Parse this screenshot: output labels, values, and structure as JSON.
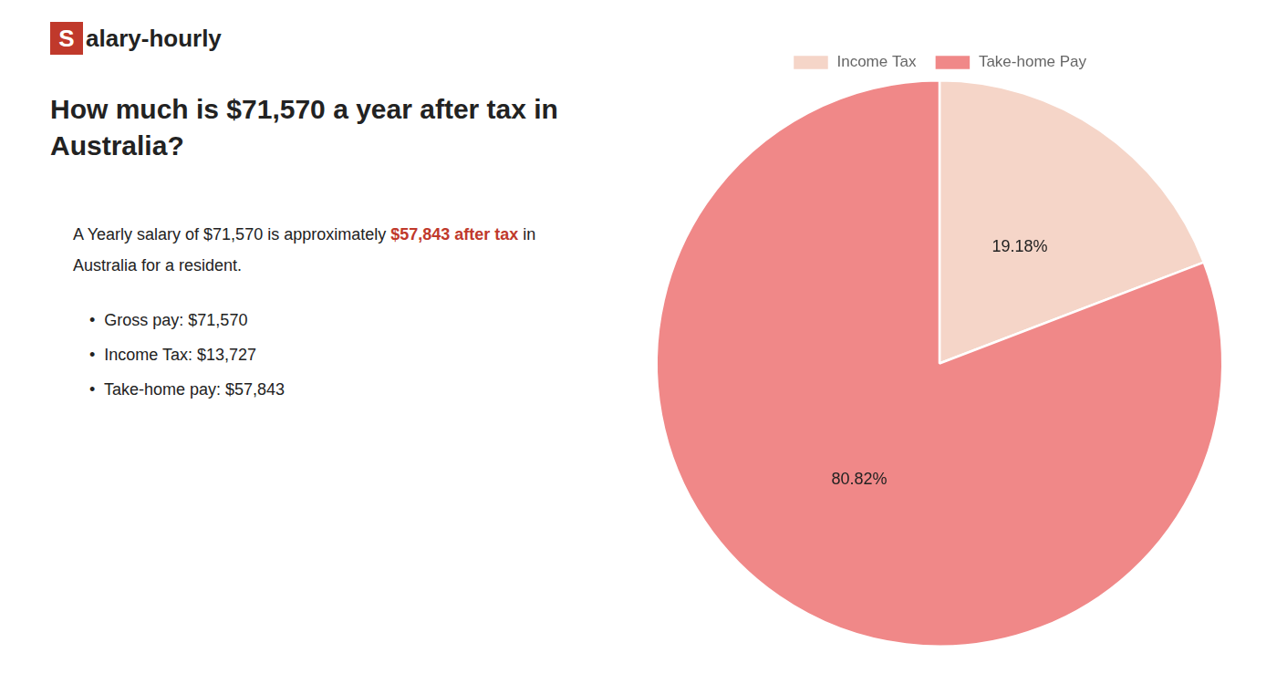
{
  "chart_data": {
    "type": "pie",
    "title": [
      "How much is $71,570 a year after tax in",
      "Australia?"
    ],
    "categories": [
      "Income Tax",
      "Take-home Pay"
    ],
    "values": [
      19.18,
      80.82
    ],
    "value_labels": [
      "19.18%",
      "80.82%"
    ],
    "colors": [
      "#f5d5c8",
      "#f08888"
    ],
    "legend": "top",
    "data_labels": true,
    "annotations": [
      [
        {
          "text": "S",
          "color": "#c0392b"
        },
        {
          "text": "alary-hourly"
        }
      ],
      [
        {
          "text": "A Yearly salary of $71,570 is approximately "
        },
        {
          "text": "$57,843 after tax",
          "color": "#c0392b"
        },
        {
          "text": " in"
        }
      ],
      [
        {
          "text": "Australia for a resident."
        }
      ],
      [
        {
          "text": "•  Gross pay: $71,570"
        }
      ],
      [
        {
          "text": "•  Income Tax: $13,727"
        }
      ],
      [
        {
          "text": "•  Take-home pay: $57,843"
        }
      ]
    ]
  }
}
